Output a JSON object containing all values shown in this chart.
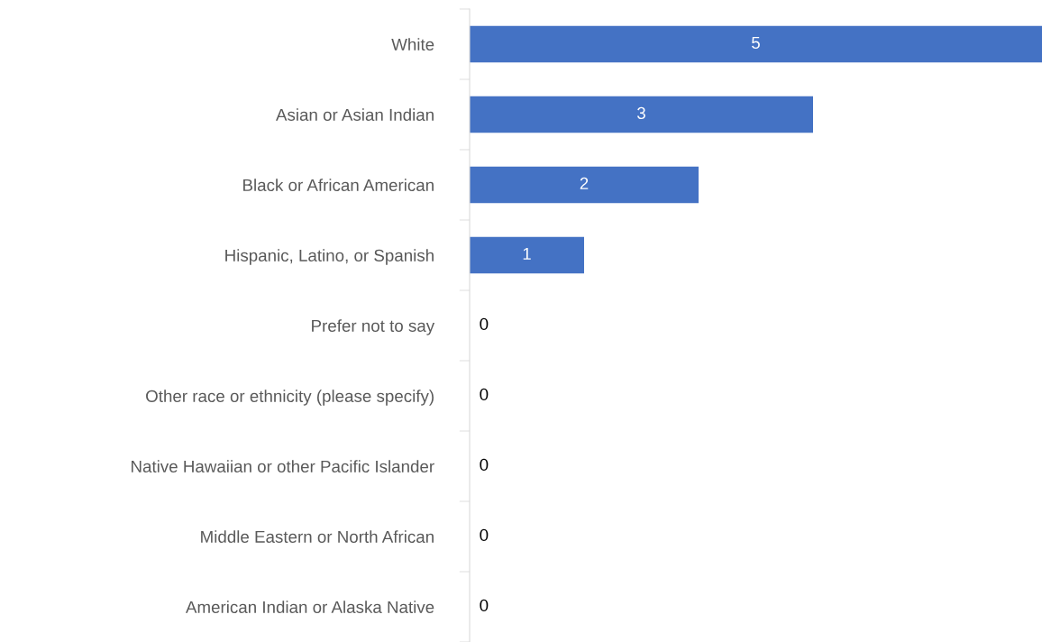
{
  "chart_data": {
    "type": "bar",
    "orientation": "horizontal",
    "color": "#4472c4",
    "categories": [
      "White",
      "Asian or Asian Indian",
      "Black or African American",
      "Hispanic, Latino, or Spanish",
      "Prefer not to say",
      "Other race or ethnicity (please specify)",
      "Native Hawaiian or other Pacific Islander",
      "Middle Eastern or North African",
      "American Indian or Alaska Native"
    ],
    "values": [
      5,
      3,
      2,
      1,
      0,
      0,
      0,
      0,
      0
    ],
    "data_labels": true
  }
}
